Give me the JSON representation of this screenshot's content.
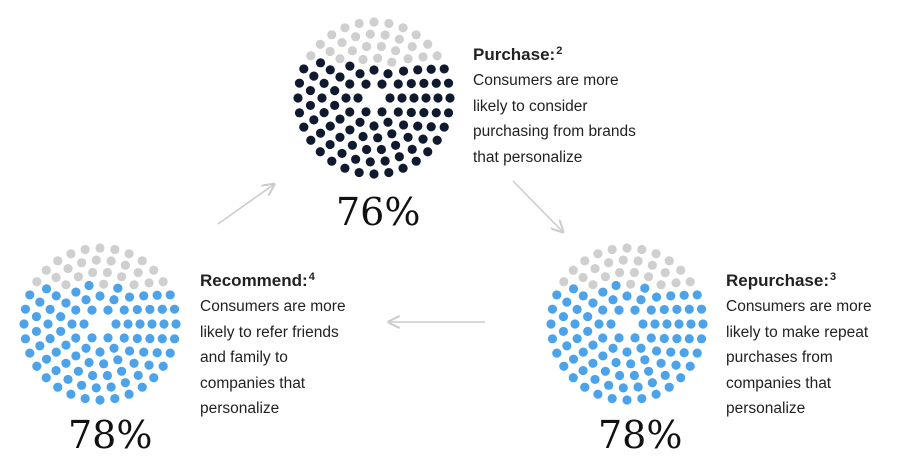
{
  "colors": {
    "purchase": "#0f1a2e",
    "recommend": "#4ca3ea",
    "repurchase": "#4ca3ea",
    "inactive": "#cfcfcf",
    "arrow": "#cccccc"
  },
  "stages": [
    {
      "id": "purchase",
      "title": "Purchase:",
      "footnote": "2",
      "lines": [
        "Consumers are more",
        "likely to consider",
        "purchasing from brands",
        "that personalize"
      ],
      "percent_label": "76%",
      "percent": 76
    },
    {
      "id": "repurchase",
      "title": "Repurchase:",
      "footnote": "3",
      "lines": [
        "Consumers are more",
        "likely to make repeat",
        "purchases from",
        "companies that",
        "personalize"
      ],
      "percent_label": "78%",
      "percent": 78
    },
    {
      "id": "recommend",
      "title": "Recommend:",
      "footnote": "4",
      "lines": [
        "Consumers are more",
        "likely to refer friends",
        "and family to",
        "companies that",
        "personalize"
      ],
      "percent_label": "78%",
      "percent": 78
    }
  ]
}
